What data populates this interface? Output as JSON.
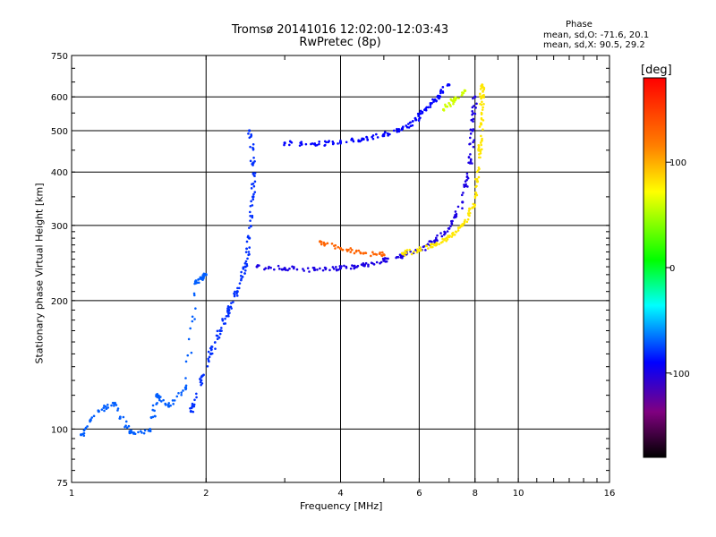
{
  "chart_data": {
    "type": "scatter",
    "title": "Tromsø 20141016 12:02:00-12:03:43",
    "subtitle": "RwPretec (8p)",
    "xlabel": "Frequency [MHz]",
    "ylabel": "Stationary phase Virtual Height [km]",
    "x_scale": "log",
    "y_scale": "log",
    "xlim": [
      1,
      16
    ],
    "ylim": [
      75,
      750
    ],
    "x_ticks": [
      1,
      2,
      4,
      6,
      8,
      10,
      16
    ],
    "y_ticks": [
      75,
      100,
      200,
      300,
      400,
      500,
      600,
      750
    ],
    "grid": true,
    "colorbar": {
      "label": "[deg]",
      "range": [
        -180,
        180
      ],
      "ticks": [
        100,
        0,
        -100
      ]
    },
    "phase_stats": {
      "heading": "Phase",
      "line_o": "mean, sd,O: -71.6, 20.1",
      "line_x": "mean, sd,X:  90.5, 29.2"
    },
    "traces": [
      {
        "phase": -70,
        "points": [
          [
            1.05,
            97
          ],
          [
            1.15,
            110
          ],
          [
            1.25,
            115
          ],
          [
            1.35,
            98
          ],
          [
            1.5,
            99
          ],
          [
            1.55,
            120
          ],
          [
            1.65,
            113
          ],
          [
            1.8,
            125
          ],
          [
            1.9,
            220
          ],
          [
            1.95,
            225
          ],
          [
            2.0,
            230
          ]
        ]
      },
      {
        "phase": -80,
        "points": [
          [
            1.85,
            110
          ],
          [
            1.95,
            130
          ],
          [
            2.05,
            150
          ],
          [
            2.15,
            170
          ],
          [
            2.25,
            190
          ],
          [
            2.35,
            210
          ],
          [
            2.45,
            240
          ],
          [
            2.5,
            280
          ],
          [
            2.55,
            350
          ],
          [
            2.55,
            420
          ],
          [
            2.5,
            500
          ]
        ]
      },
      {
        "phase": -100,
        "points": [
          [
            2.6,
            240
          ],
          [
            3.0,
            238
          ],
          [
            3.5,
            236
          ],
          [
            4.0,
            238
          ],
          [
            4.5,
            242
          ],
          [
            5.0,
            248
          ],
          [
            5.5,
            255
          ],
          [
            6.0,
            262
          ],
          [
            6.5,
            275
          ],
          [
            7.0,
            295
          ],
          [
            7.5,
            340
          ],
          [
            7.8,
            420
          ],
          [
            7.9,
            500
          ],
          [
            8.0,
            600
          ]
        ]
      },
      {
        "phase": -90,
        "points": [
          [
            3.0,
            468
          ],
          [
            3.5,
            465
          ],
          [
            4.0,
            470
          ],
          [
            4.5,
            478
          ],
          [
            5.0,
            490
          ],
          [
            5.5,
            505
          ],
          [
            5.9,
            530
          ],
          [
            6.2,
            560
          ],
          [
            6.6,
            600
          ],
          [
            7.0,
            640
          ]
        ]
      },
      {
        "phase": 130,
        "points": [
          [
            3.6,
            275
          ],
          [
            4.0,
            265
          ],
          [
            4.5,
            258
          ],
          [
            5.0,
            256
          ]
        ]
      },
      {
        "phase": 80,
        "points": [
          [
            5.5,
            258
          ],
          [
            6.0,
            262
          ],
          [
            6.5,
            270
          ],
          [
            7.0,
            282
          ],
          [
            7.5,
            300
          ],
          [
            7.9,
            330
          ],
          [
            8.1,
            380
          ],
          [
            8.2,
            450
          ],
          [
            8.25,
            520
          ],
          [
            8.3,
            600
          ],
          [
            8.3,
            640
          ]
        ]
      },
      {
        "phase": 60,
        "points": [
          [
            6.8,
            560
          ],
          [
            7.2,
            590
          ],
          [
            7.6,
            620
          ]
        ]
      }
    ]
  }
}
